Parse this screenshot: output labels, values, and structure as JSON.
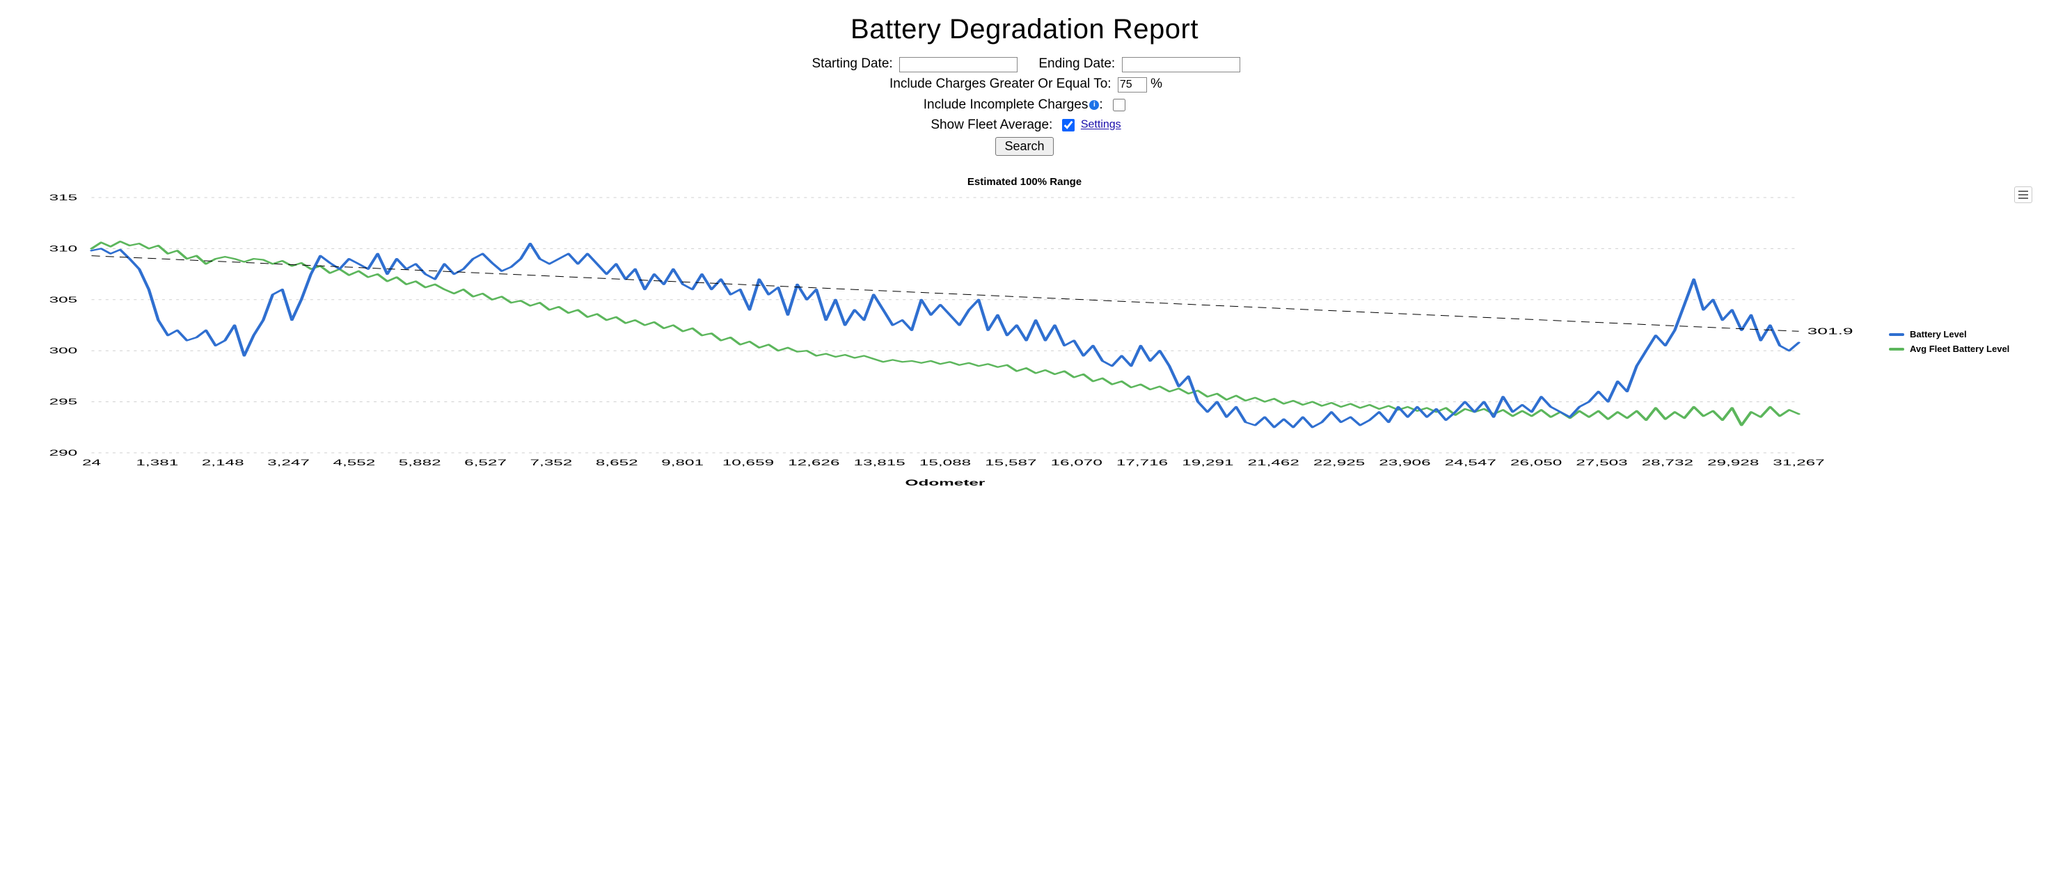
{
  "page": {
    "title": "Battery Degradation Report"
  },
  "form": {
    "starting_date_label": "Starting Date:",
    "ending_date_label": "Ending Date:",
    "starting_date_value": "",
    "ending_date_value": "",
    "threshold_label": "Include Charges Greater Or Equal To:",
    "threshold_value": "75",
    "threshold_unit": "%",
    "incomplete_label": "Include Incomplete Charges",
    "incomplete_checked": false,
    "fleet_label": "Show Fleet Average:",
    "fleet_checked": true,
    "settings_link": "Settings",
    "search_button": "Search"
  },
  "chart": {
    "title": "Estimated 100% Range",
    "x_axis_label": "Odometer",
    "type": "line",
    "background_color": "#ffffff",
    "grid_color": "#cfcfcf",
    "grid_dash": "2,3",
    "trend_color": "#000000",
    "trend_dash": "6,4",
    "trend_width": 1,
    "trend_end_value": "301.9",
    "ylim": [
      290,
      315
    ],
    "ytick_step": 5,
    "yticks": [
      290,
      295,
      300,
      305,
      310,
      315
    ],
    "x_categories": [
      "24",
      "1,381",
      "2,148",
      "3,247",
      "4,552",
      "5,882",
      "6,527",
      "7,352",
      "8,652",
      "9,801",
      "10,659",
      "12,626",
      "13,815",
      "15,088",
      "15,587",
      "16,070",
      "17,716",
      "19,291",
      "21,462",
      "22,925",
      "23,906",
      "24,547",
      "26,050",
      "27,503",
      "28,732",
      "29,928",
      "31,267"
    ],
    "legend": [
      {
        "name": "Battery Level",
        "color": "#2f6fd0"
      },
      {
        "name": "Avg Fleet Battery Level",
        "color": "#5cb65c"
      }
    ],
    "series": {
      "battery": {
        "color": "#2f6fd0",
        "line_width": 2.2,
        "values": [
          309.8,
          310.0,
          309.5,
          309.9,
          309.0,
          308.0,
          306.0,
          303.0,
          301.5,
          302.0,
          301.0,
          301.3,
          302.0,
          300.5,
          301.0,
          302.5,
          299.5,
          301.5,
          303.0,
          305.5,
          306.0,
          303.0,
          305.0,
          307.5,
          309.3,
          308.6,
          308.0,
          309.0,
          308.5,
          308.0,
          309.5,
          307.5,
          309.0,
          308.0,
          308.5,
          307.5,
          307.0,
          308.5,
          307.5,
          308.0,
          309.0,
          309.5,
          308.6,
          307.8,
          308.2,
          309.0,
          310.5,
          309.0,
          308.5,
          309.0,
          309.5,
          308.5,
          309.5,
          308.5,
          307.5,
          308.5,
          307.0,
          308.0,
          306.0,
          307.5,
          306.5,
          308.0,
          306.5,
          306.0,
          307.5,
          306.0,
          307.0,
          305.5,
          306.0,
          304.0,
          307.0,
          305.5,
          306.2,
          303.5,
          306.5,
          305.0,
          306.0,
          303.0,
          305.0,
          302.5,
          304.0,
          303.0,
          305.5,
          304.0,
          302.5,
          303.0,
          302.0,
          305.0,
          303.5,
          304.5,
          303.5,
          302.5,
          304.0,
          305.0,
          302.0,
          303.5,
          301.5,
          302.5,
          301.0,
          303.0,
          301.0,
          302.5,
          300.5,
          301.0,
          299.5,
          300.5,
          299.0,
          298.5,
          299.5,
          298.5,
          300.5,
          299.0,
          300.0,
          298.5,
          296.5,
          297.5,
          295.0,
          294.0,
          295.0,
          293.5,
          294.5,
          293.0,
          292.7,
          293.5,
          292.5,
          293.3,
          292.5,
          293.5,
          292.5,
          293.0,
          294.0,
          293.0,
          293.5,
          292.7,
          293.2,
          294.0,
          293.0,
          294.5,
          293.5,
          294.5,
          293.5,
          294.3,
          293.2,
          294.0,
          295.0,
          294.0,
          295.0,
          293.5,
          295.5,
          294.0,
          294.7,
          294.0,
          295.5,
          294.5,
          294.0,
          293.5,
          294.5,
          295.0,
          296.0,
          295.0,
          297.0,
          296.0,
          298.5,
          300.0,
          301.5,
          300.5,
          302.0,
          304.5,
          307.0,
          304.0,
          305.0,
          303.0,
          304.0,
          302.0,
          303.5,
          301.0,
          302.5,
          300.5,
          300.0,
          300.8
        ]
      },
      "fleet": {
        "color": "#5cb65c",
        "line_width": 2.2,
        "values": [
          310.0,
          310.6,
          310.2,
          310.7,
          310.3,
          310.5,
          310.0,
          310.3,
          309.5,
          309.8,
          309.0,
          309.3,
          308.5,
          309.0,
          309.2,
          309.0,
          308.7,
          309.0,
          308.9,
          308.5,
          308.8,
          308.3,
          308.6,
          308.0,
          308.3,
          307.6,
          308.0,
          307.4,
          307.8,
          307.2,
          307.5,
          306.8,
          307.2,
          306.5,
          306.8,
          306.2,
          306.5,
          306.0,
          305.6,
          306.0,
          305.3,
          305.6,
          305.0,
          305.3,
          304.7,
          304.9,
          304.4,
          304.7,
          304.0,
          304.3,
          303.7,
          304.0,
          303.3,
          303.6,
          303.0,
          303.3,
          302.7,
          303.0,
          302.5,
          302.8,
          302.2,
          302.5,
          301.9,
          302.2,
          301.5,
          301.7,
          301.0,
          301.3,
          300.6,
          300.9,
          300.3,
          300.6,
          300.0,
          300.3,
          299.9,
          300.0,
          299.5,
          299.7,
          299.4,
          299.6,
          299.3,
          299.5,
          299.2,
          298.9,
          299.1,
          298.9,
          299.0,
          298.8,
          299.0,
          298.7,
          298.9,
          298.6,
          298.8,
          298.5,
          298.7,
          298.4,
          298.6,
          298.0,
          298.3,
          297.8,
          298.1,
          297.7,
          298.0,
          297.4,
          297.7,
          297.0,
          297.3,
          296.7,
          297.0,
          296.4,
          296.7,
          296.2,
          296.5,
          296.0,
          296.3,
          295.8,
          296.1,
          295.5,
          295.8,
          295.2,
          295.6,
          295.1,
          295.4,
          295.0,
          295.3,
          294.8,
          295.1,
          294.7,
          295.0,
          294.6,
          294.9,
          294.5,
          294.8,
          294.4,
          294.7,
          294.3,
          294.6,
          294.2,
          294.5,
          294.1,
          294.4,
          294.0,
          294.4,
          293.7,
          294.3,
          294.0,
          294.3,
          293.8,
          294.2,
          293.6,
          294.1,
          293.6,
          294.2,
          293.5,
          294.0,
          293.4,
          294.1,
          293.5,
          294.1,
          293.3,
          294.0,
          293.4,
          294.1,
          293.2,
          294.4,
          293.3,
          294.0,
          293.4,
          294.5,
          293.6,
          294.1,
          293.2,
          294.4,
          292.7,
          294.0,
          293.5,
          294.5,
          293.6,
          294.2,
          293.8
        ]
      },
      "trend": {
        "start_y": 309.3,
        "end_y": 301.9
      }
    }
  }
}
